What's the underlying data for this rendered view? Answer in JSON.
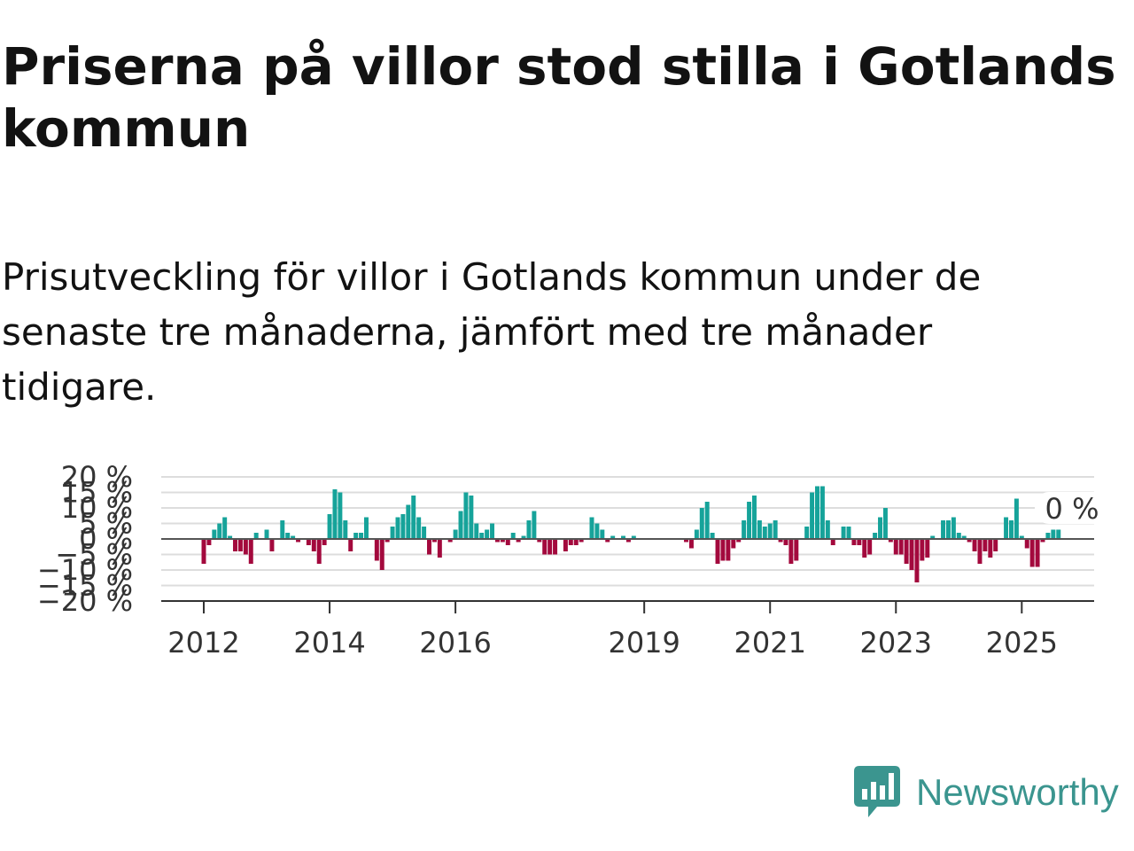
{
  "title": "Priserna på villor stod stilla i Gotlands kommun",
  "subtitle": "Prisutveckling för villor i Gotlands kommun under de senaste tre månaderna, jämfört med tre månader tidigare.",
  "brand": {
    "name": "Newsworthy",
    "logo_icon": "bar-chart-speech-bubble-icon",
    "color": "#3b958f"
  },
  "chart_data": {
    "type": "bar",
    "colors": {
      "positive": "#16a39a",
      "negative": "#a3093d",
      "zero_line": "#555555",
      "grid": "#dddddd"
    },
    "y_ticks": [
      20,
      15,
      10,
      5,
      0,
      -5,
      -10,
      -15,
      -20
    ],
    "y_tick_labels": [
      "20 %",
      "15 %",
      "10 %",
      "5 %",
      "0 %",
      "−5 %",
      "−10 %",
      "−15 %",
      "−20 %"
    ],
    "ylim": [
      -20,
      20
    ],
    "x_ticks": [
      2012,
      2014,
      2016,
      2019,
      2021,
      2023,
      2025
    ],
    "x_tick_labels": [
      "2012",
      "2014",
      "2016",
      "2019",
      "2021",
      "2023",
      "2025"
    ],
    "start": "2012-01",
    "frequency": "monthly",
    "latest_label": "0 %",
    "values": [
      -8,
      -2,
      3,
      5,
      7,
      1,
      -4,
      -4,
      -5,
      -8,
      2,
      0,
      3,
      -4,
      0,
      6,
      2,
      1,
      -1,
      0,
      -2,
      -4,
      -8,
      -2,
      8,
      16,
      15,
      6,
      -4,
      2,
      2,
      7,
      0,
      -7,
      -10,
      -1,
      4,
      7,
      8,
      11,
      14,
      7,
      4,
      -5,
      -1,
      -6,
      0,
      -1,
      3,
      9,
      15,
      14,
      5,
      2,
      3,
      5,
      -1,
      -1,
      -2,
      2,
      -1,
      1,
      6,
      9,
      -1,
      -5,
      -5,
      -5,
      0,
      -4,
      -2,
      -2,
      -1,
      0,
      7,
      5,
      3,
      -1,
      1,
      0,
      1,
      -1,
      1,
      0,
      0,
      0,
      0,
      0,
      0,
      0,
      0,
      0,
      -1,
      -3,
      3,
      10,
      12,
      2,
      -8,
      -7,
      -7,
      -3,
      -1,
      6,
      12,
      14,
      6,
      4,
      5,
      6,
      -1,
      -2,
      -8,
      -7,
      0,
      4,
      15,
      17,
      17,
      6,
      -2,
      0,
      4,
      4,
      -2,
      -2,
      -6,
      -5,
      2,
      7,
      10,
      -1,
      -5,
      -5,
      -8,
      -10,
      -14,
      -7,
      -6,
      1,
      0,
      6,
      6,
      7,
      2,
      1,
      -1,
      -4,
      -8,
      -4,
      -6,
      -4,
      0,
      7,
      6,
      13,
      1,
      -3,
      -9,
      -9,
      -1,
      2,
      3,
      3,
      0
    ]
  }
}
